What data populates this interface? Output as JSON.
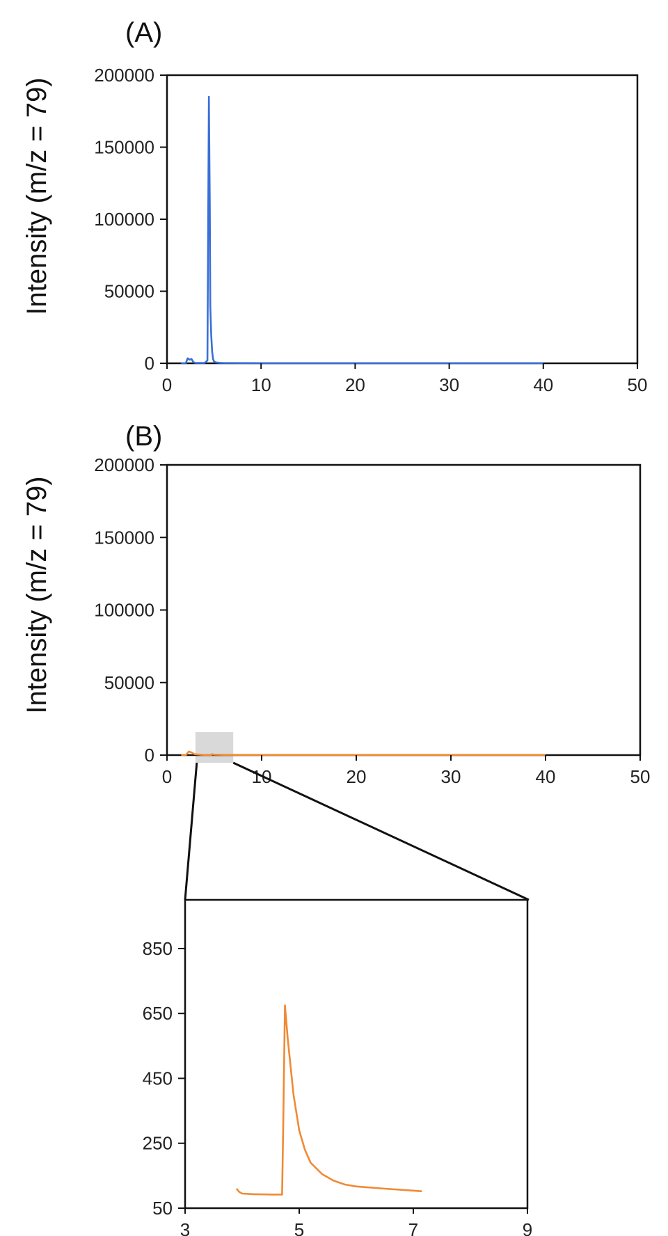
{
  "chart_data": [
    {
      "panel": "(A)",
      "type": "line",
      "ylabel": "Intensity (m/z = 79)",
      "xlabel": "",
      "xlim": [
        0,
        50
      ],
      "ylim": [
        0,
        200000
      ],
      "xticks": [
        0,
        10,
        20,
        30,
        40,
        50
      ],
      "yticks": [
        0,
        50000,
        100000,
        150000,
        200000
      ],
      "color": "#3a6fd8",
      "x": [
        1.5,
        2.0,
        2.2,
        2.4,
        2.6,
        2.8,
        3.0,
        3.5,
        4.0,
        4.3,
        4.45,
        4.55,
        4.6,
        4.7,
        4.8,
        4.9,
        5.0,
        5.2,
        5.6,
        6.0,
        10,
        20,
        30,
        40
      ],
      "y": [
        0,
        0,
        3500,
        2500,
        3000,
        800,
        300,
        200,
        200,
        2000,
        185000,
        110000,
        40000,
        20000,
        8000,
        3000,
        1200,
        600,
        300,
        200,
        100,
        100,
        100,
        100
      ]
    },
    {
      "panel": "(B)",
      "type": "line",
      "ylabel": "Intensity (m/z = 79)",
      "xlabel": "",
      "xlim": [
        0,
        50
      ],
      "ylim": [
        0,
        200000
      ],
      "xticks": [
        0,
        10,
        20,
        30,
        40,
        50
      ],
      "yticks": [
        0,
        50000,
        100000,
        150000,
        200000
      ],
      "color": "#f08a33",
      "highlight_x": [
        3,
        7
      ],
      "x": [
        1.5,
        2.0,
        2.3,
        2.6,
        2.9,
        3.5,
        4.0,
        4.7,
        4.75,
        5.0,
        6.0,
        10,
        20,
        30,
        40
      ],
      "y": [
        0,
        0,
        2500,
        1800,
        600,
        300,
        100,
        100,
        660,
        300,
        150,
        150,
        150,
        150,
        150
      ]
    },
    {
      "panel": "inset",
      "type": "line",
      "xlabel": "",
      "ylabel": "",
      "xlim": [
        3,
        9
      ],
      "ylim": [
        50,
        1000
      ],
      "xticks": [
        3,
        5,
        7,
        9
      ],
      "yticks": [
        50,
        250,
        450,
        650,
        850
      ],
      "color": "#f08a33",
      "x": [
        3.9,
        3.95,
        4.0,
        4.2,
        4.5,
        4.7,
        4.72,
        4.75,
        4.8,
        4.9,
        5.0,
        5.1,
        5.2,
        5.4,
        5.6,
        5.8,
        6.0,
        6.5,
        7.0,
        7.15
      ],
      "y": [
        110,
        100,
        95,
        93,
        92,
        92,
        300,
        675,
        570,
        400,
        290,
        230,
        190,
        155,
        135,
        123,
        117,
        110,
        104,
        102
      ]
    }
  ]
}
